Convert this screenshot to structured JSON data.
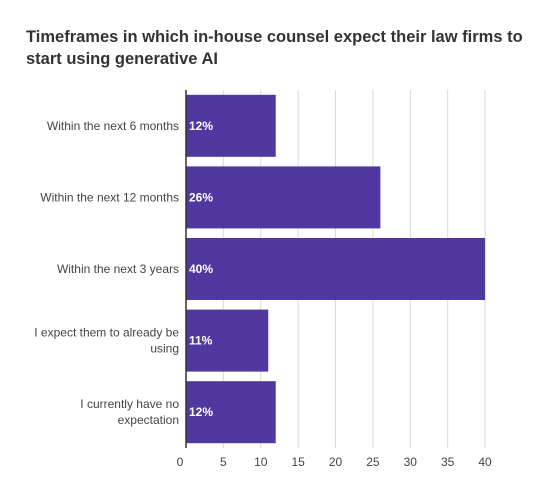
{
  "chart_data": {
    "type": "bar",
    "orientation": "horizontal",
    "title": "Timeframes in which in-house counsel expect their law firms to start using generative AI",
    "categories": [
      [
        "Within the next 6 months"
      ],
      [
        "Within the next 12 months"
      ],
      [
        "Within the next 3 years"
      ],
      [
        "I expect them to already be",
        "using"
      ],
      [
        "I currently have no",
        "expectation"
      ]
    ],
    "values": [
      12,
      26,
      40,
      11,
      12
    ],
    "data_labels": [
      "12%",
      "26%",
      "40%",
      "11%",
      "12%"
    ],
    "xlim": [
      0,
      42
    ],
    "xticks": [
      0,
      5,
      10,
      15,
      20,
      25,
      30,
      35,
      40
    ],
    "grid": true,
    "bar_color": "#5038a0",
    "xlabel": "",
    "ylabel": ""
  }
}
